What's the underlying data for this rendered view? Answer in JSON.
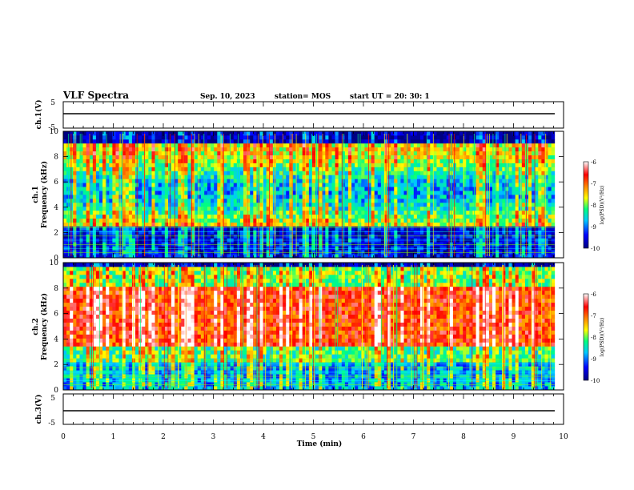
{
  "header": {
    "title": "VLF Spectra",
    "date": "Sep. 10, 2023",
    "station": "station= MOS",
    "start": "start  UT =   20: 30: 1"
  },
  "chart_data": [
    {
      "type": "line",
      "panel": "ch1-waveform",
      "ylabel": "ch.1(V)",
      "ylim": [
        -5,
        5
      ],
      "yticks": [
        "5",
        "-5"
      ],
      "xlim": [
        0,
        10
      ],
      "level": 0
    },
    {
      "type": "heatmap",
      "panel": "ch1-spectrogram",
      "ylabel": "ch.1\nFrequency (kHz)",
      "ylim": [
        0,
        10
      ],
      "yticks": [
        0,
        2,
        4,
        6,
        8,
        10
      ],
      "xlim": [
        0,
        10
      ],
      "data_end_min": 9.82,
      "colorbar": {
        "label": "log(PSD)(V²/Hz)",
        "ticks": [
          "-6",
          "-7",
          "-8",
          "-9",
          "-10"
        ]
      }
    },
    {
      "type": "heatmap",
      "panel": "ch2-spectrogram",
      "ylabel": "ch.2\nFrequency (kHz)",
      "ylim": [
        0,
        10
      ],
      "yticks": [
        0,
        2,
        4,
        6,
        8,
        10
      ],
      "xlim": [
        0,
        10
      ],
      "data_end_min": 9.82,
      "colorbar": {
        "label": "log(PSD)(V²/Hz)",
        "ticks": [
          "-6",
          "-7",
          "-8",
          "-9",
          "-10"
        ]
      }
    },
    {
      "type": "line",
      "panel": "ch3-waveform",
      "ylabel": "ch.3(V)",
      "ylim": [
        -5,
        5
      ],
      "yticks": [
        "5",
        "-5"
      ],
      "xlim": [
        0,
        10
      ],
      "level": 0
    }
  ],
  "xaxis": {
    "label": "Time  (min)",
    "ticks": [
      "0",
      "1",
      "2",
      "3",
      "4",
      "5",
      "6",
      "7",
      "8",
      "9",
      "10"
    ]
  }
}
